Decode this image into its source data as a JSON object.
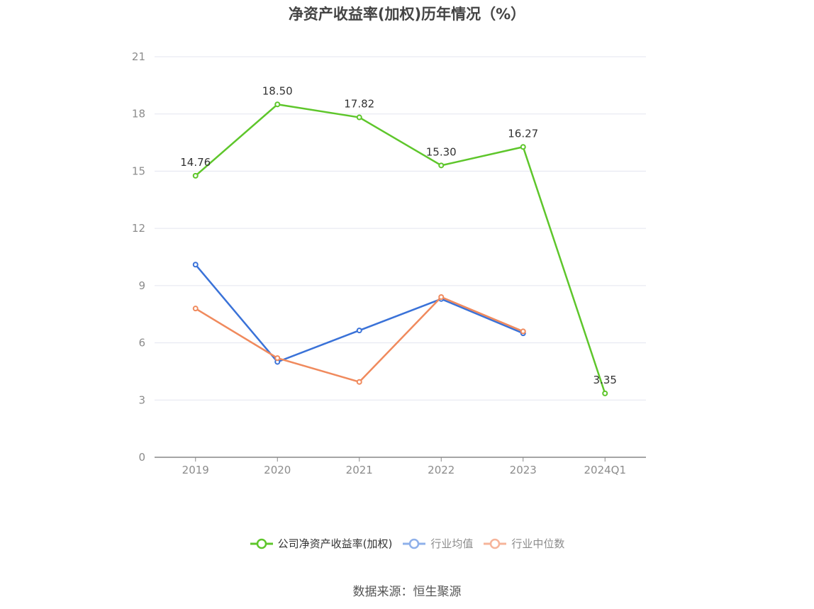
{
  "chart_data": {
    "type": "line",
    "title": "净资产收益率(加权)历年情况（%）",
    "categories": [
      "2019",
      "2020",
      "2021",
      "2022",
      "2023",
      "2024Q1"
    ],
    "ylim": [
      0,
      21
    ],
    "yticks": [
      0,
      3,
      6,
      9,
      12,
      15,
      18,
      21
    ],
    "grid": true,
    "legend_position": "bottom",
    "series": [
      {
        "name": "公司净资产收益率(加权)",
        "color": "#5ec62b",
        "values": [
          14.76,
          18.5,
          17.82,
          15.3,
          16.27,
          3.35
        ],
        "labels": [
          "14.76",
          "18.50",
          "17.82",
          "15.30",
          "16.27",
          "3.35"
        ]
      },
      {
        "name": "行业均值",
        "color": "#3a72d8",
        "values": [
          10.1,
          5.0,
          6.65,
          8.3,
          6.5,
          null
        ]
      },
      {
        "name": "行业中位数",
        "color": "#f08a5d",
        "values": [
          7.8,
          5.2,
          3.95,
          8.4,
          6.6,
          null
        ]
      }
    ]
  },
  "legend_colors": [
    "#5ec62b",
    "#8fb0ea",
    "#f6b49a"
  ],
  "source": "数据来源：恒生聚源"
}
